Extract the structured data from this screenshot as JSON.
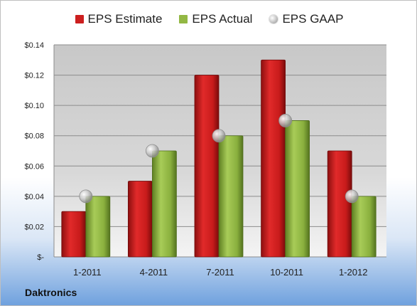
{
  "company": "Daktronics",
  "legend": [
    {
      "label": "EPS Estimate",
      "color": "#cc1f1f",
      "shape": "square"
    },
    {
      "label": "EPS Actual",
      "color": "#93b844",
      "shape": "square"
    },
    {
      "label": "EPS GAAP",
      "color": "#bdbdbd",
      "shape": "circle"
    }
  ],
  "chart_data": {
    "type": "bar",
    "categories": [
      "1-2011",
      "4-2011",
      "7-2011",
      "10-2011",
      "1-2012"
    ],
    "series": [
      {
        "name": "EPS Estimate",
        "values": [
          0.03,
          0.05,
          0.12,
          0.13,
          0.07
        ],
        "color": "#cc1f1f"
      },
      {
        "name": "EPS Actual",
        "values": [
          0.04,
          0.07,
          0.08,
          0.09,
          0.04
        ],
        "color": "#93b844"
      },
      {
        "name": "EPS GAAP",
        "values": [
          0.04,
          0.07,
          0.08,
          0.09,
          0.04
        ],
        "color": "#bdbdbd",
        "marker": "circle"
      }
    ],
    "yticks": [
      "$-",
      "$0.02",
      "$0.04",
      "$0.06",
      "$0.08",
      "$0.10",
      "$0.12",
      "$0.14"
    ],
    "ylim": [
      0,
      0.14
    ],
    "grid": true,
    "legend_position": "top"
  }
}
